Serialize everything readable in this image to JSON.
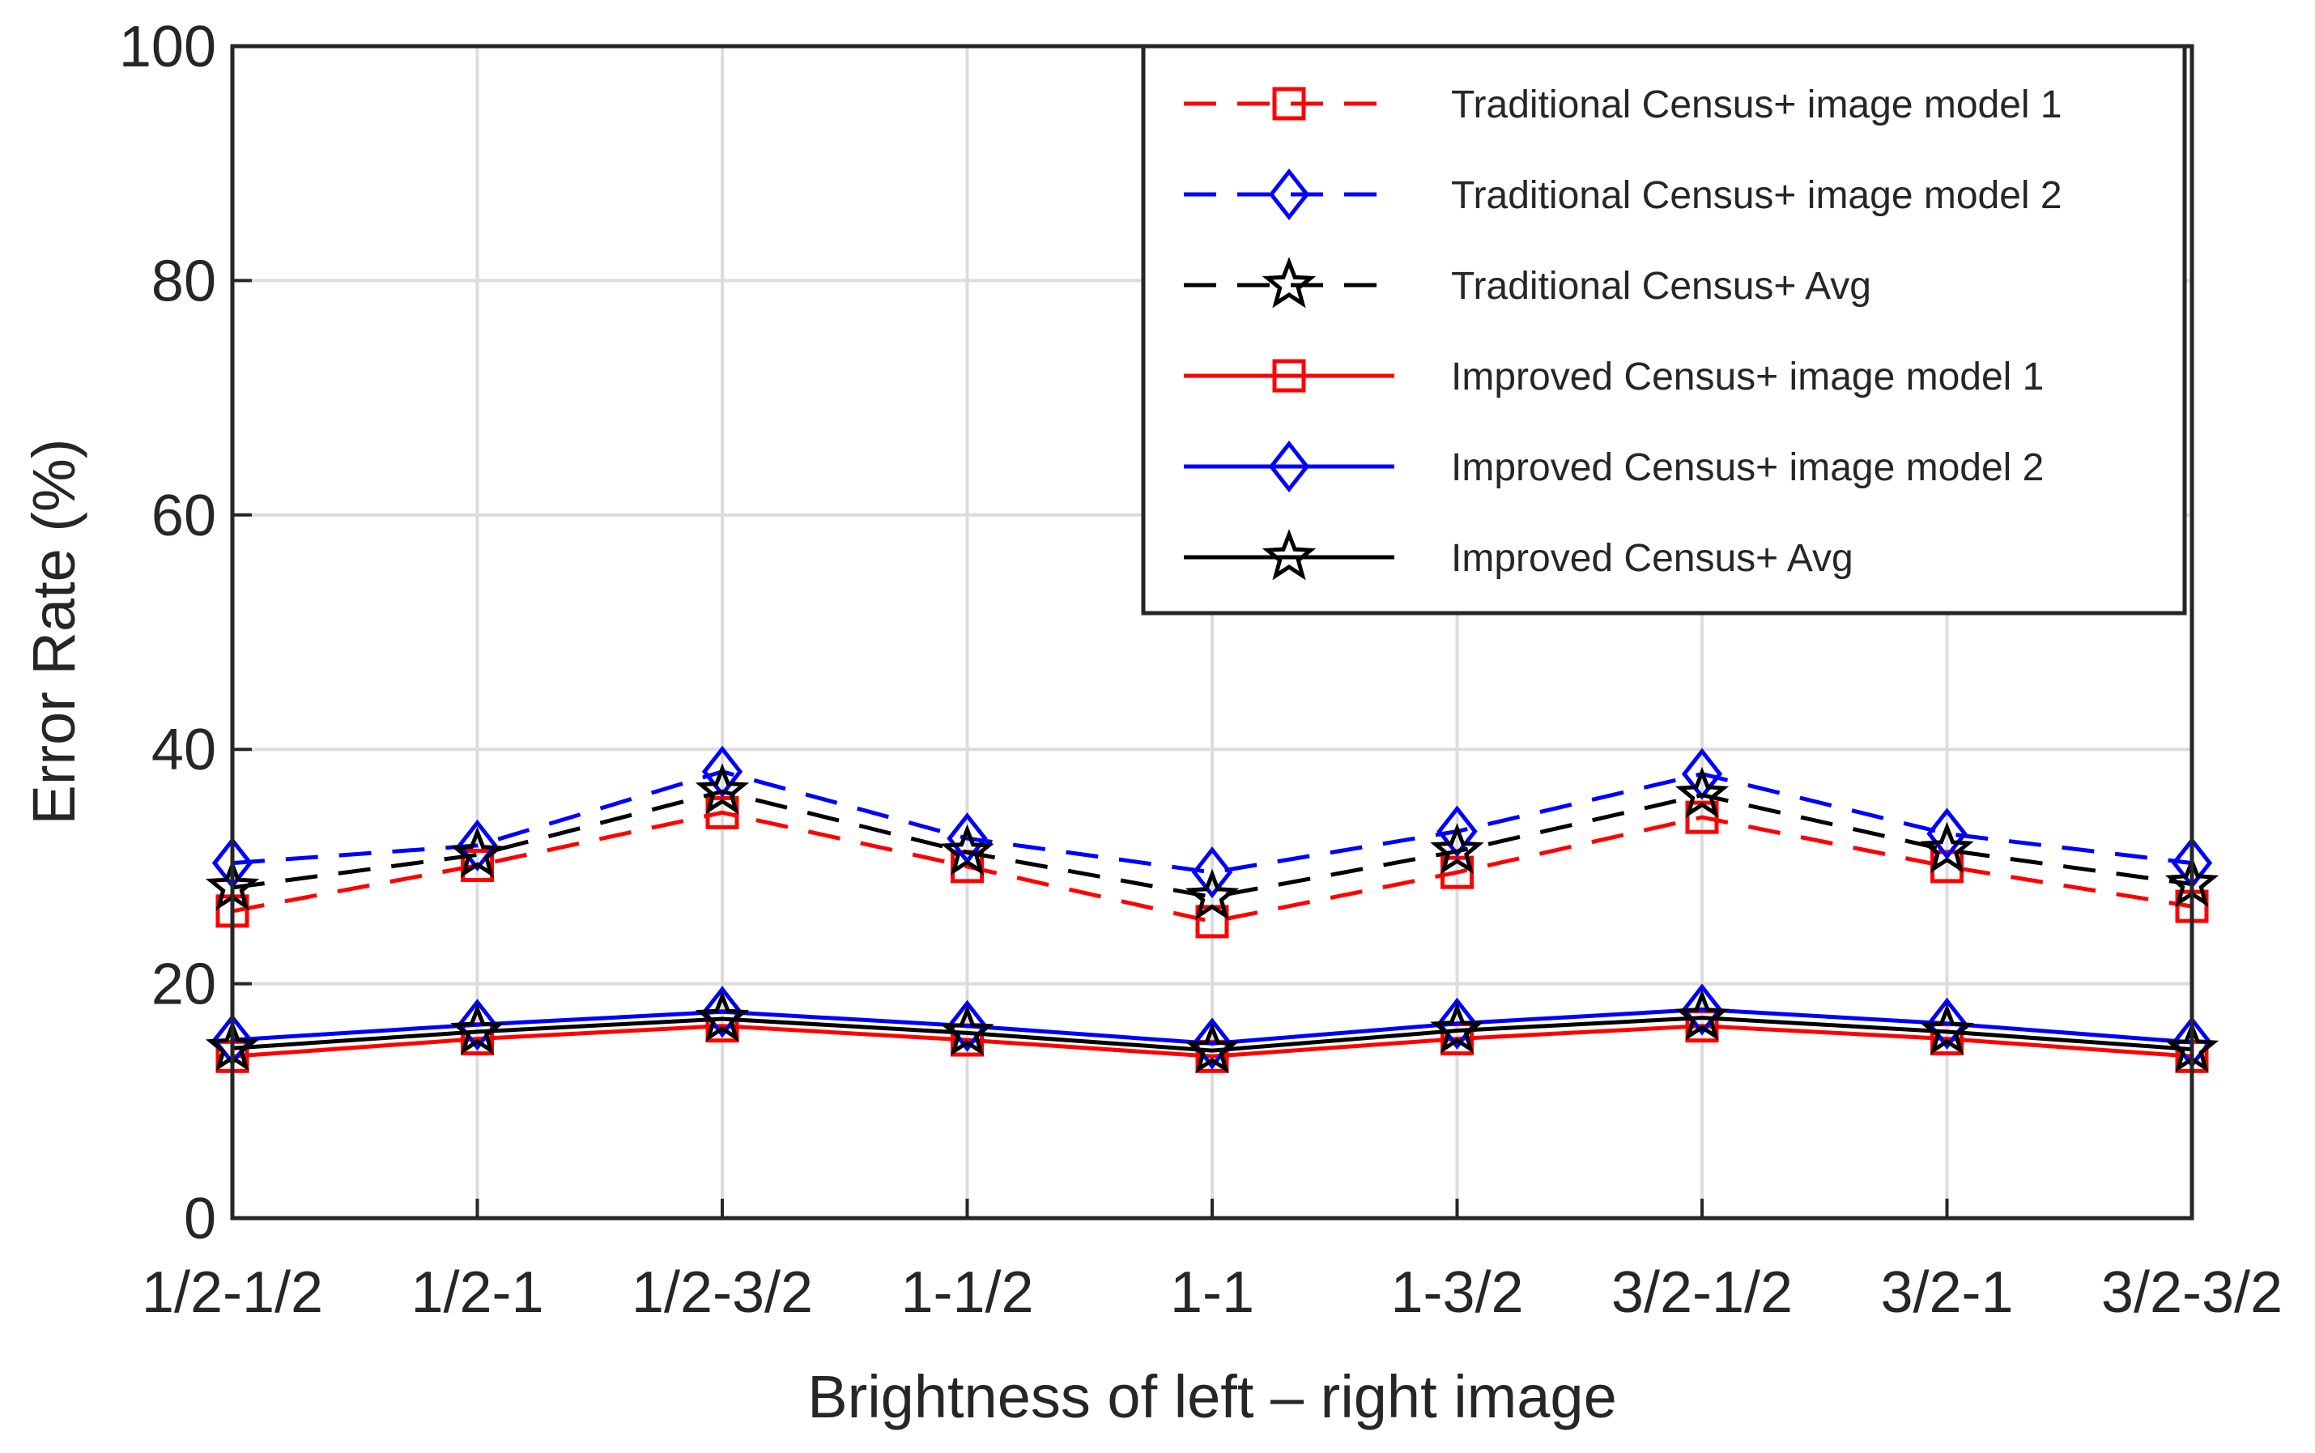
{
  "chart_data": {
    "type": "line",
    "title": "",
    "xlabel": "Brightness of left – right image",
    "ylabel": "Error Rate (%)",
    "ylim": [
      0,
      100
    ],
    "yticks": [
      0,
      20,
      40,
      60,
      80,
      100
    ],
    "grid": true,
    "legend_position": "top-right",
    "categories": [
      "1/2-1/2",
      "1/2-1",
      "1/2-3/2",
      "1-1/2",
      "1-1",
      "1-3/2",
      "3/2-1/2",
      "3/2-1",
      "3/2-3/2"
    ],
    "series": [
      {
        "name": "Traditional Census+ image model 1",
        "color": "#ff0000",
        "dash": "dashed",
        "marker": "square",
        "values": [
          26.2,
          30.1,
          34.6,
          30.0,
          25.3,
          29.5,
          34.2,
          30.0,
          26.6
        ]
      },
      {
        "name": "Traditional Census+ image model 2",
        "color": "#0000ff",
        "dash": "dashed",
        "marker": "diamond",
        "values": [
          30.3,
          31.8,
          38.1,
          32.4,
          29.5,
          33.0,
          37.9,
          32.8,
          30.3
        ]
      },
      {
        "name": "Traditional Census+ Avg",
        "color": "#000000",
        "dash": "dashed",
        "marker": "star",
        "values": [
          28.2,
          31.0,
          36.4,
          31.2,
          27.4,
          31.3,
          36.1,
          31.4,
          28.5
        ]
      },
      {
        "name": "Improved Census+ image model 1",
        "color": "#ff0000",
        "dash": "solid",
        "marker": "square",
        "values": [
          13.8,
          15.3,
          16.4,
          15.2,
          13.8,
          15.3,
          16.4,
          15.3,
          13.8
        ]
      },
      {
        "name": "Improved Census+ image model 2",
        "color": "#0000ff",
        "dash": "solid",
        "marker": "diamond",
        "values": [
          15.2,
          16.5,
          17.6,
          16.4,
          14.9,
          16.6,
          17.8,
          16.6,
          15.0
        ]
      },
      {
        "name": "Improved Census+ Avg",
        "color": "#000000",
        "dash": "solid",
        "marker": "star",
        "values": [
          14.5,
          15.9,
          17.0,
          15.8,
          14.3,
          16.0,
          17.1,
          15.9,
          14.4
        ]
      }
    ]
  }
}
